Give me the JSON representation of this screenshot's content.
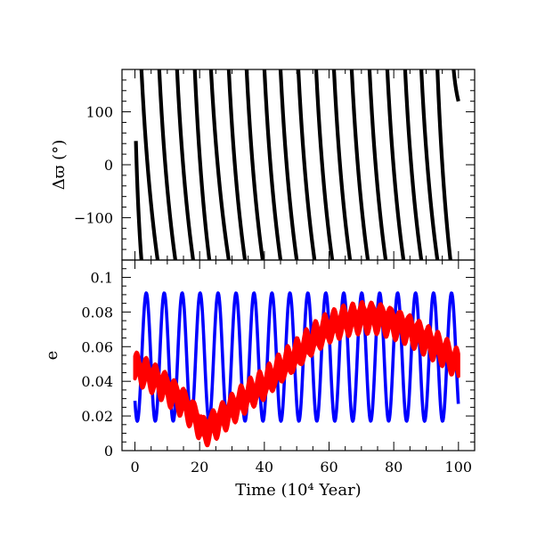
{
  "chart_data": [
    {
      "type": "line",
      "panel": "top",
      "ylabel": "Δϖ (°)",
      "xlim": [
        -4,
        105
      ],
      "ylim": [
        -180,
        180
      ],
      "yticks": [
        -100,
        0,
        100
      ],
      "ytick_labels": [
        "−100",
        "0",
        "100"
      ],
      "series": [
        {
          "color": "#000000",
          "style": "thick line, wraps at ±180",
          "note": "circulating: Δϖ decreases from +180 to −180 repeatedly",
          "x": [
            0.3,
            2.0,
            7.2,
            12.5,
            17.5,
            22.5,
            27.0,
            32.5,
            38.0,
            43.0,
            49.0,
            54.5,
            60.0,
            65.5,
            71.0,
            76.5,
            82.0,
            87.5,
            93.0,
            98.0,
            99.5
          ],
          "y": [
            45,
            -180,
            180,
            180,
            180,
            180,
            180,
            180,
            180,
            180,
            180,
            180,
            180,
            180,
            180,
            180,
            180,
            180,
            180,
            180,
            120
          ]
        }
      ],
      "segments": [
        {
          "x": [
            0.3,
            2.0
          ],
          "y": [
            45,
            -180
          ]
        },
        {
          "x": [
            2.0,
            7.0
          ],
          "y": [
            180,
            -180
          ]
        },
        {
          "x": [
            7.5,
            12.5
          ],
          "y": [
            180,
            -180
          ]
        },
        {
          "x": [
            13.0,
            18.0
          ],
          "y": [
            180,
            -180
          ]
        },
        {
          "x": [
            18.5,
            23.0
          ],
          "y": [
            180,
            -180
          ]
        },
        {
          "x": [
            23.5,
            29.0
          ],
          "y": [
            180,
            -180
          ]
        },
        {
          "x": [
            29.0,
            34.0
          ],
          "y": [
            180,
            -180
          ]
        },
        {
          "x": [
            34.5,
            39.5
          ],
          "y": [
            180,
            -180
          ]
        },
        {
          "x": [
            40.0,
            45.0
          ],
          "y": [
            180,
            -180
          ]
        },
        {
          "x": [
            45.0,
            50.0
          ],
          "y": [
            180,
            -180
          ]
        },
        {
          "x": [
            50.5,
            55.5
          ],
          "y": [
            180,
            -180
          ]
        },
        {
          "x": [
            56.0,
            61.0
          ],
          "y": [
            180,
            -180
          ]
        },
        {
          "x": [
            61.5,
            66.5
          ],
          "y": [
            180,
            -180
          ]
        },
        {
          "x": [
            67.0,
            72.0
          ],
          "y": [
            180,
            -180
          ]
        },
        {
          "x": [
            72.5,
            77.5
          ],
          "y": [
            180,
            -180
          ]
        },
        {
          "x": [
            78.0,
            83.0
          ],
          "y": [
            180,
            -180
          ]
        },
        {
          "x": [
            83.5,
            88.5
          ],
          "y": [
            180,
            -180
          ]
        },
        {
          "x": [
            88.5,
            93.5
          ],
          "y": [
            180,
            -180
          ]
        },
        {
          "x": [
            93.5,
            97.5
          ],
          "y": [
            180,
            -180
          ]
        },
        {
          "x": [
            98.5,
            100.0
          ],
          "y": [
            180,
            120
          ]
        }
      ]
    },
    {
      "type": "line",
      "panel": "bottom",
      "xlabel": "Time (10⁴ Year)",
      "ylabel": "e",
      "xlim": [
        -4,
        105
      ],
      "ylim": [
        0,
        0.11
      ],
      "xticks": [
        0,
        20,
        40,
        60,
        80,
        100
      ],
      "xtick_labels": [
        "0",
        "20",
        "40",
        "60",
        "80",
        "100"
      ],
      "yticks": [
        0,
        0.02,
        0.04,
        0.06,
        0.08,
        0.1
      ],
      "ytick_labels": [
        "0",
        "0.02",
        "0.04",
        "0.06",
        "0.08",
        "0.1"
      ],
      "series": [
        {
          "color": "#0000ff",
          "style": "fast oscillation",
          "center": 0.054,
          "amplitude": 0.037,
          "period": 5.55,
          "phase_peak_x": 3.5,
          "x_range": [
            0,
            100
          ]
        },
        {
          "color": "#ff0000",
          "style": "thick slow envelope",
          "x": [
            0,
            5,
            10,
            15,
            20,
            21,
            25,
            30,
            35,
            40,
            45,
            50,
            55,
            60,
            65,
            70,
            75,
            80,
            85,
            90,
            95,
            100
          ],
          "y": [
            0.048,
            0.043,
            0.036,
            0.028,
            0.016,
            0.011,
            0.016,
            0.024,
            0.032,
            0.038,
            0.047,
            0.055,
            0.064,
            0.071,
            0.075,
            0.077,
            0.077,
            0.074,
            0.07,
            0.064,
            0.058,
            0.049
          ],
          "band": 0.008
        }
      ]
    }
  ]
}
